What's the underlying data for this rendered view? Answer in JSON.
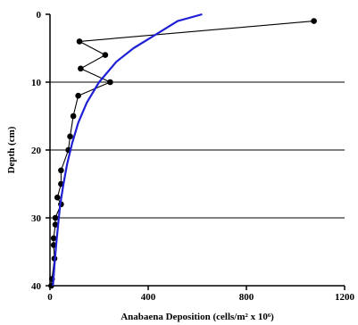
{
  "chart_data": {
    "type": "scatter",
    "title": "",
    "xlabel": "Anabaena Deposition (cells/m² x 10⁶)",
    "ylabel": "Depth (cm)",
    "xlim": [
      0,
      1200
    ],
    "ylim": [
      0,
      40
    ],
    "y_inverted": true,
    "x_ticks": [
      "0",
      "400",
      "800",
      "1200"
    ],
    "y_ticks": [
      "0",
      "10",
      "20",
      "30",
      "40"
    ],
    "grid": "horizontal",
    "series": [
      {
        "style": "markers-with-line",
        "color": "#000000",
        "points": [
          {
            "x": 1075,
            "y": 1
          },
          {
            "x": 120,
            "y": 4
          },
          {
            "x": 225,
            "y": 6
          },
          {
            "x": 125,
            "y": 8
          },
          {
            "x": 245,
            "y": 10
          },
          {
            "x": 115,
            "y": 12
          },
          {
            "x": 95,
            "y": 15
          },
          {
            "x": 82,
            "y": 18
          },
          {
            "x": 75,
            "y": 20
          },
          {
            "x": 45,
            "y": 23
          },
          {
            "x": 45,
            "y": 25
          },
          {
            "x": 30,
            "y": 27
          },
          {
            "x": 45,
            "y": 28
          },
          {
            "x": 22,
            "y": 30
          },
          {
            "x": 22,
            "y": 31
          },
          {
            "x": 15,
            "y": 33
          },
          {
            "x": 15,
            "y": 34
          },
          {
            "x": 18,
            "y": 36
          },
          {
            "x": 8,
            "y": 39
          },
          {
            "x": 5,
            "y": 40
          }
        ]
      },
      {
        "style": "line",
        "color": "#1f1fd6",
        "points": [
          {
            "x": 620,
            "y": 0
          },
          {
            "x": 520,
            "y": 1
          },
          {
            "x": 430,
            "y": 3
          },
          {
            "x": 340,
            "y": 5
          },
          {
            "x": 270,
            "y": 7
          },
          {
            "x": 200,
            "y": 10
          },
          {
            "x": 150,
            "y": 13
          },
          {
            "x": 115,
            "y": 16
          },
          {
            "x": 90,
            "y": 19
          },
          {
            "x": 70,
            "y": 22
          },
          {
            "x": 55,
            "y": 25
          },
          {
            "x": 42,
            "y": 28
          },
          {
            "x": 33,
            "y": 31
          },
          {
            "x": 25,
            "y": 34
          },
          {
            "x": 18,
            "y": 37
          },
          {
            "x": 12,
            "y": 40
          }
        ]
      }
    ]
  }
}
